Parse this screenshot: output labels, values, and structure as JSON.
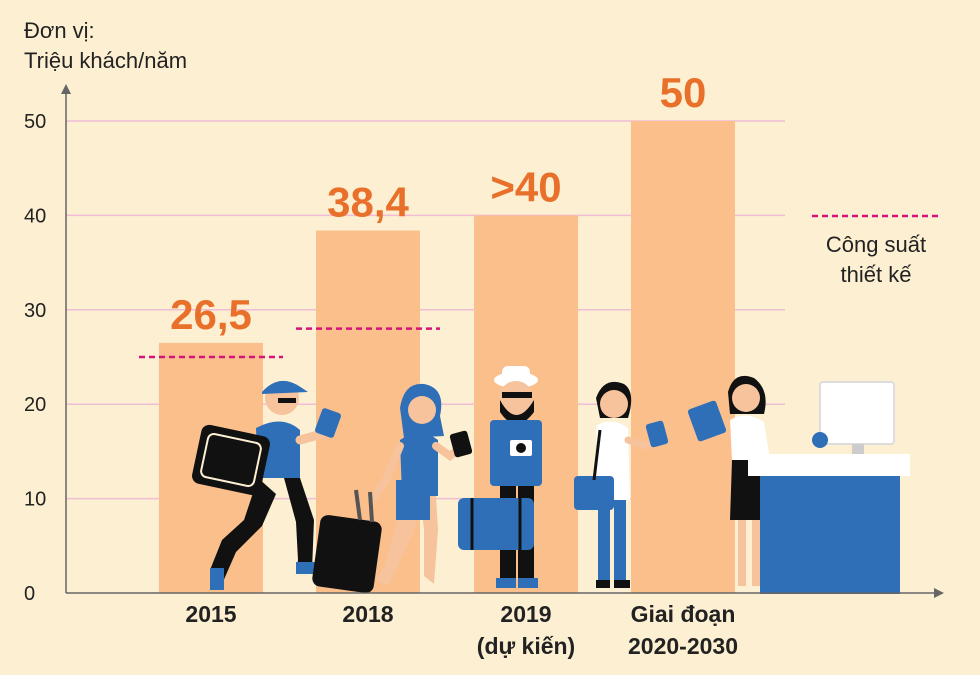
{
  "unit_line1": "Đơn vị:",
  "unit_line2": "Triệu khách/năm",
  "colors": {
    "background": "#fdf0d2",
    "bar": "#fbbf8c",
    "value_label": "#e9702a",
    "grid": "#f0bcd6",
    "capacity_line": "#d6137a",
    "axis": "#666666",
    "figure_blue": "#2e6fb8",
    "figure_dark": "#111111"
  },
  "legend": {
    "line1": "Công suất",
    "line2": "thiết kế"
  },
  "chart_data": {
    "type": "bar",
    "categories": [
      [
        "2015"
      ],
      [
        "2018"
      ],
      [
        "2019",
        "(dự kiến)"
      ],
      [
        "Giai đoạn",
        "2020-2030"
      ]
    ],
    "values": [
      26.5,
      38.4,
      40,
      50
    ],
    "value_labels": [
      "26,5",
      "38,4",
      ">40",
      "50"
    ],
    "design_capacity": [
      25,
      28,
      null,
      null
    ],
    "yticks": [
      0,
      10,
      20,
      30,
      40,
      50
    ],
    "ylim": [
      0,
      55
    ],
    "grid": true
  }
}
